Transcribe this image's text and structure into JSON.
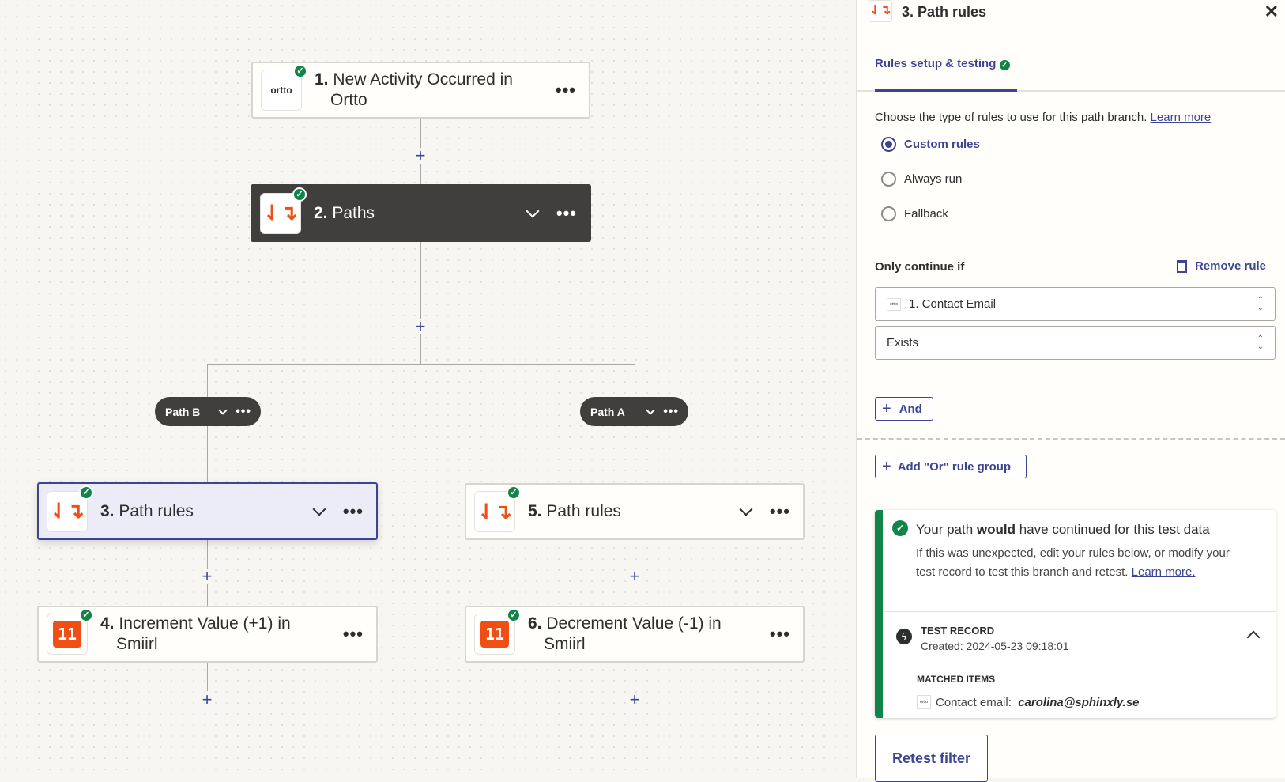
{
  "canvas": {
    "nodes": [
      {
        "number": "1.",
        "title": "New Activity Occurred in",
        "title2": "Ortto",
        "app": "ortto"
      },
      {
        "number": "2.",
        "title": "Paths",
        "app": "paths"
      },
      {
        "number": "3.",
        "title": "Path rules",
        "app": "paths"
      },
      {
        "number": "4.",
        "title": "Increment Value (+1) in",
        "title2": "Smiirl",
        "app": "smiirl"
      },
      {
        "number": "5.",
        "title": "Path rules",
        "app": "paths"
      },
      {
        "number": "6.",
        "title": "Decrement Value (-1) in",
        "title2": "Smiirl",
        "app": "smiirl"
      }
    ],
    "paths": [
      {
        "label": "Path B"
      },
      {
        "label": "Path A"
      }
    ],
    "ortto_logo": "ortto",
    "smiirl_logo": "11",
    "plus": "+",
    "more": "•••"
  },
  "panel": {
    "title": "3. Path rules",
    "close": "✕",
    "tab": "Rules setup & testing",
    "description": "Choose the type of rules to use for this path branch.",
    "learn_more": "Learn more",
    "radios": [
      {
        "label": "Custom rules",
        "selected": true
      },
      {
        "label": "Always run",
        "selected": false
      },
      {
        "label": "Fallback",
        "selected": false
      }
    ],
    "only_continue_if": "Only continue if",
    "remove_rule": "Remove rule",
    "field_select": "1. Contact Email",
    "condition_select": "Exists",
    "and_button": "And",
    "or_button": "Add \"Or\" rule group",
    "result": {
      "heading_pre": "Your path",
      "heading_bold": "would",
      "heading_post": "have continued for this test data",
      "body": "If this was unexpected, edit your rules below, or modify your test record to test this branch and retest.",
      "learn_more": "Learn more.",
      "test_record_label": "TEST RECORD",
      "created": "Created: 2024-05-23 09:18:01",
      "matched_items_label": "MATCHED ITEMS",
      "matched_key": "Contact email:",
      "matched_value": "carolina@sphinxly.se"
    },
    "retest_button": "Retest filter"
  },
  "colors": {
    "accent": "#3d4592",
    "success": "#138448",
    "brand_orange": "#f04e12",
    "dark_node": "#403f3e"
  }
}
